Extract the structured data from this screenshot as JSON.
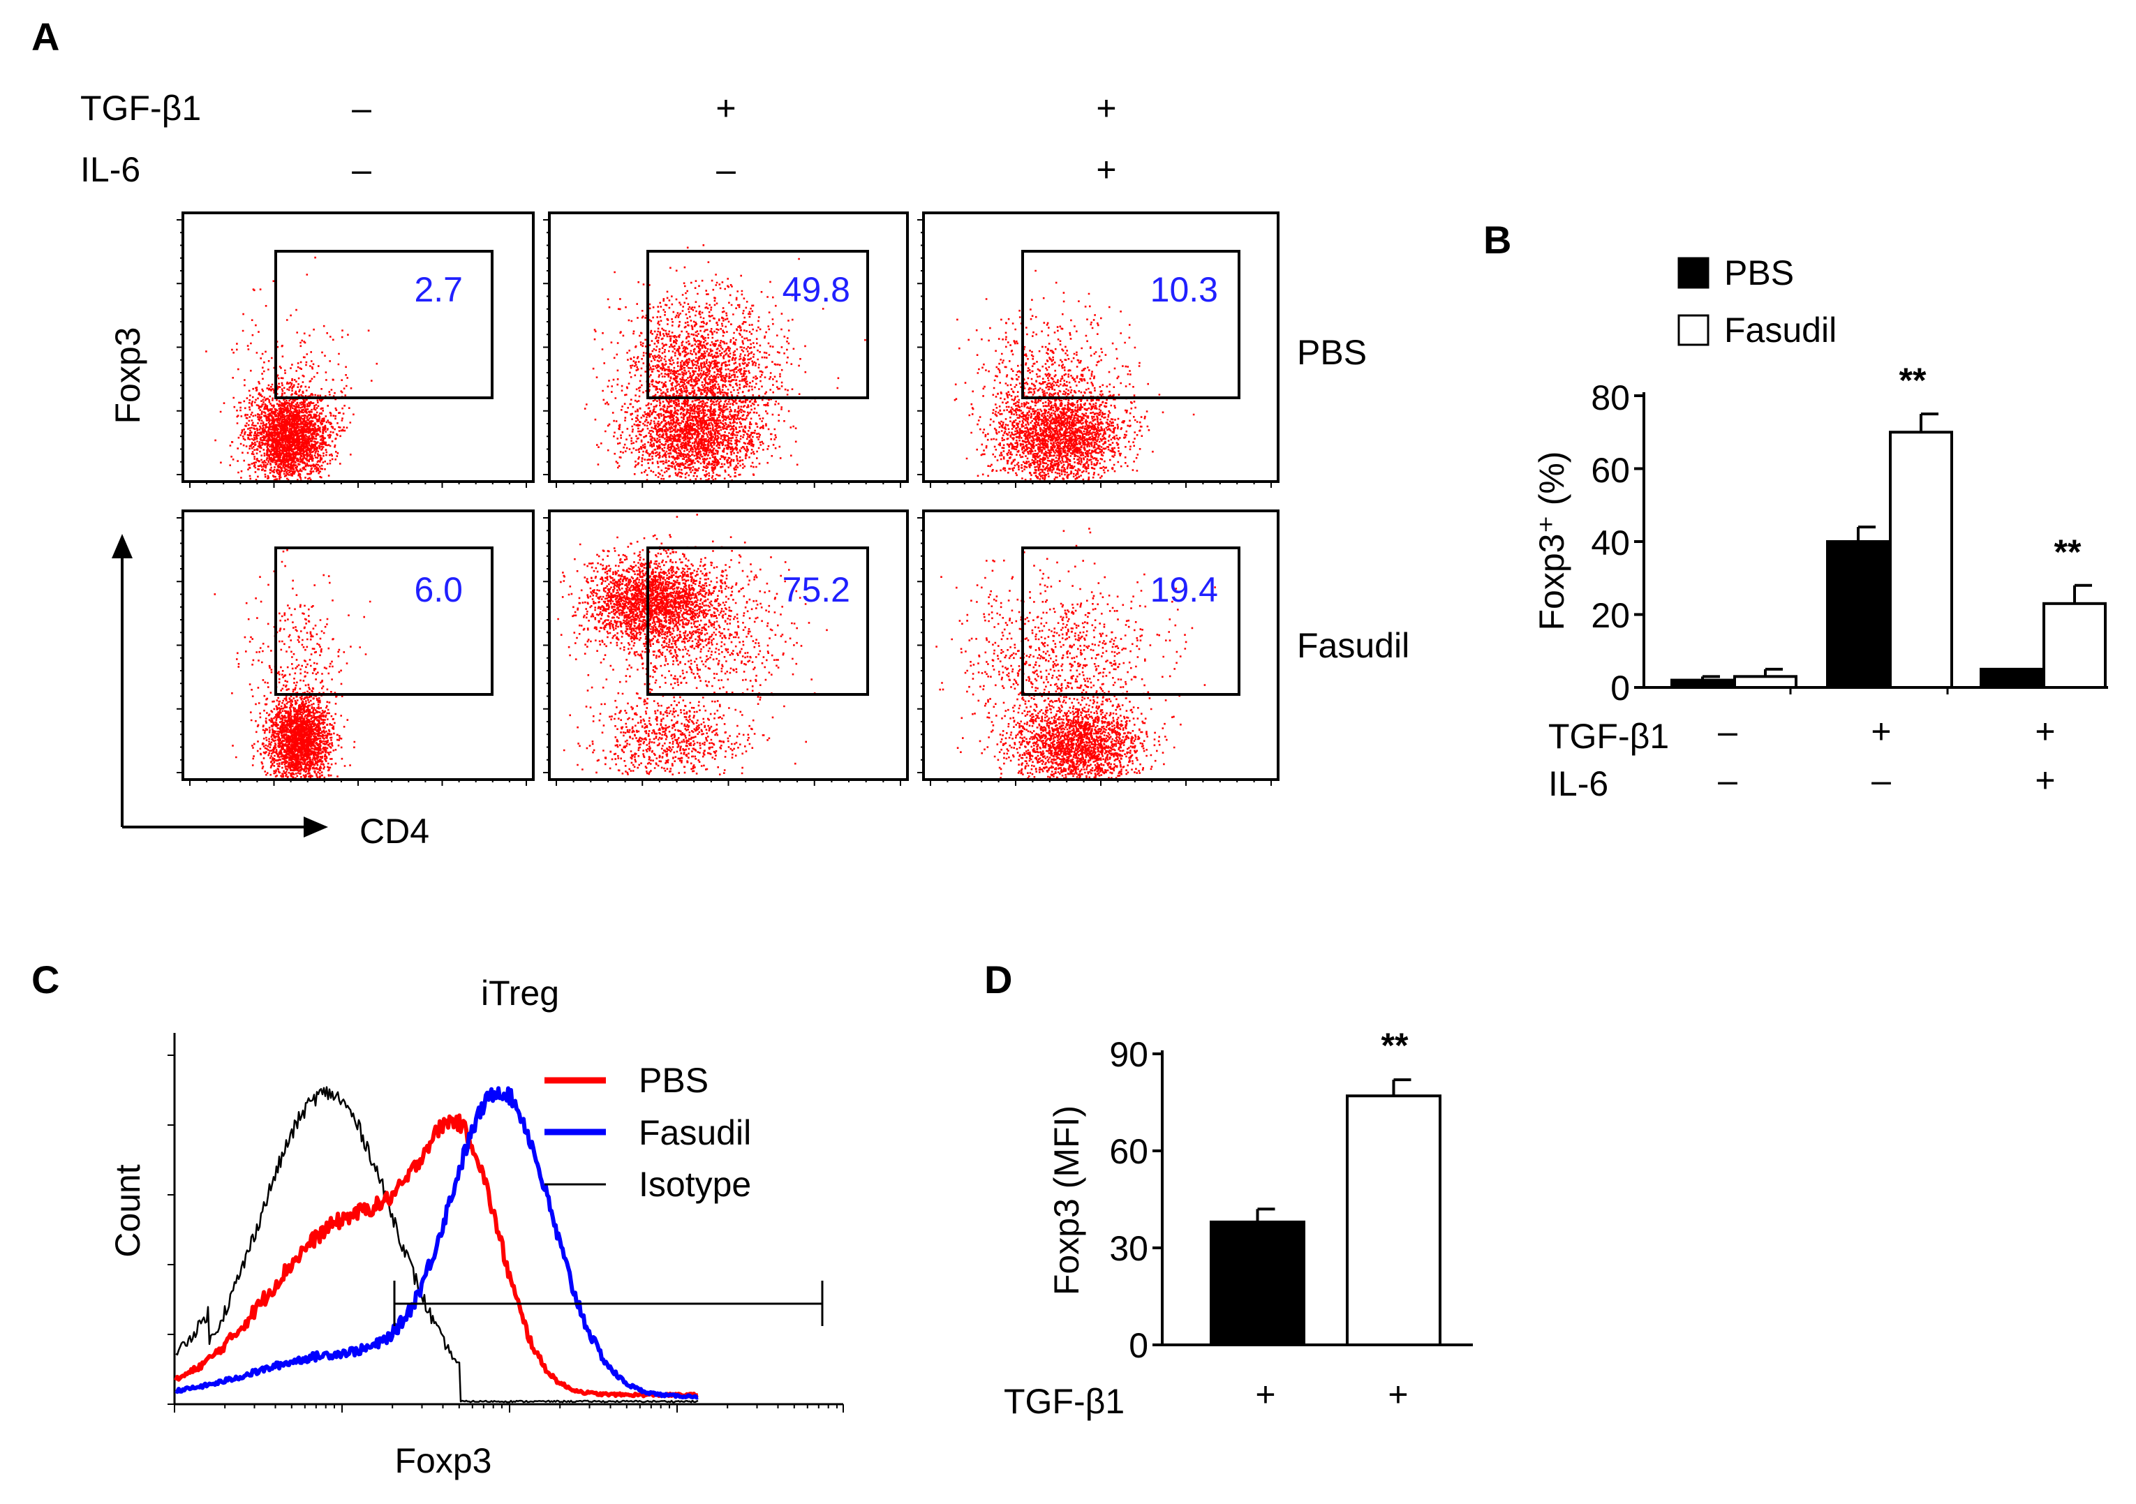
{
  "panels": {
    "A": {
      "label": "A",
      "conditions": {
        "tgf_label": "TGF-β1",
        "il6_label": "IL-6",
        "tgf_values": [
          "–",
          "+",
          "+"
        ],
        "il6_values": [
          "–",
          "–",
          "+"
        ]
      },
      "rows": [
        {
          "name": "PBS",
          "values": [
            "2.7",
            "49.8",
            "10.3"
          ]
        },
        {
          "name": "Fasudil",
          "values": [
            "6.0",
            "75.2",
            "19.4"
          ]
        }
      ],
      "y_axis_label": "Foxp3",
      "x_axis_label": "CD4",
      "colors": {
        "dots": "#ff0000",
        "values": "#2020ff"
      }
    },
    "B": {
      "label": "B",
      "legend": [
        "PBS",
        "Fasudil"
      ],
      "y_axis_label": "Foxp3⁺ (%)",
      "y_ticks": [
        "0",
        "20",
        "40",
        "60",
        "80"
      ],
      "tgf_label": "TGF-β1",
      "il6_label": "IL-6",
      "tgf_values": [
        "–",
        "+",
        "+"
      ],
      "il6_values": [
        "–",
        "–",
        "+"
      ],
      "significance": [
        "**",
        "**"
      ]
    },
    "C": {
      "label": "C",
      "title": "iTreg",
      "y_axis_label": "Count",
      "x_axis_label": "Foxp3",
      "legend": [
        {
          "name": "PBS",
          "color": "#ff0000"
        },
        {
          "name": "Fasudil",
          "color": "#0000ff"
        },
        {
          "name": "Isotype",
          "color": "#000000"
        }
      ]
    },
    "D": {
      "label": "D",
      "y_axis_label": "Foxp3 (MFI)",
      "y_ticks": [
        "0",
        "30",
        "60",
        "90"
      ],
      "tgf_label": "TGF-β1",
      "tgf_values": [
        "+",
        "+"
      ],
      "significance": "**"
    }
  },
  "chart_data": [
    {
      "type": "bar",
      "panel": "B",
      "categories": [
        "TGF-β1 – / IL-6 –",
        "TGF-β1 + / IL-6 –",
        "TGF-β1 + / IL-6 +"
      ],
      "series": [
        {
          "name": "PBS",
          "values": [
            2,
            40,
            5
          ],
          "errors": [
            1,
            4,
            0
          ]
        },
        {
          "name": "Fasudil",
          "values": [
            3,
            70,
            23
          ],
          "errors": [
            2,
            5,
            5
          ]
        }
      ],
      "ylabel": "Foxp3⁺ (%)",
      "ylim": [
        0,
        80
      ]
    },
    {
      "type": "bar",
      "panel": "D",
      "categories": [
        "PBS",
        "Fasudil"
      ],
      "values": [
        38,
        77
      ],
      "errors": [
        4,
        5
      ],
      "ylabel": "Foxp3 (MFI)",
      "ylim": [
        0,
        90
      ]
    }
  ]
}
